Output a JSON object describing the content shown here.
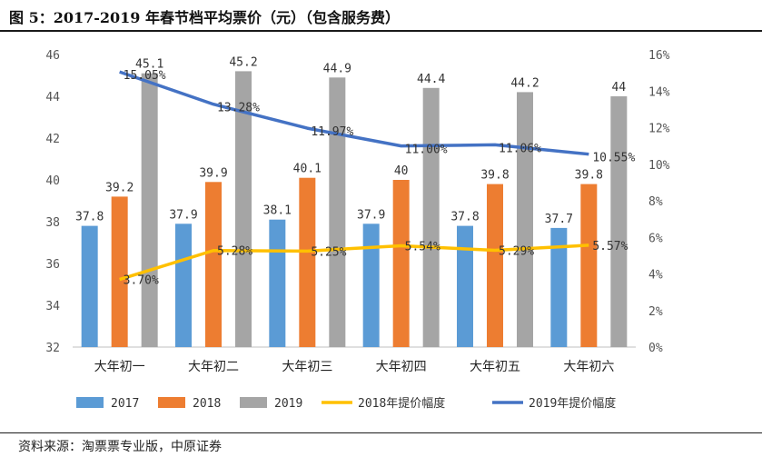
{
  "title": "图 5：2017-2019 年春节档平均票价（元）（包含服务费）",
  "source": "资料来源：淘票票专业版，中原证券",
  "chart_data": {
    "type": "bar+line",
    "categories": [
      "大年初一",
      "大年初二",
      "大年初三",
      "大年初四",
      "大年初五",
      "大年初六"
    ],
    "series": [
      {
        "name": "2017",
        "kind": "bar",
        "axis": "left",
        "color": "#5b9bd5",
        "values": [
          37.8,
          37.9,
          38.1,
          37.9,
          37.8,
          37.7
        ],
        "labels": [
          "37.8",
          "37.9",
          "38.1",
          "37.9",
          "37.8",
          "37.7"
        ]
      },
      {
        "name": "2018",
        "kind": "bar",
        "axis": "left",
        "color": "#ed7d31",
        "values": [
          39.2,
          39.9,
          40.1,
          40.0,
          39.8,
          39.8
        ],
        "labels": [
          "39.2",
          "39.9",
          "40.1",
          "40",
          "39.8",
          "39.8"
        ]
      },
      {
        "name": "2019",
        "kind": "bar",
        "axis": "left",
        "color": "#a5a5a5",
        "values": [
          45.1,
          45.2,
          44.9,
          44.4,
          44.2,
          44.0
        ],
        "labels": [
          "45.1",
          "45.2",
          "44.9",
          "44.4",
          "44.2",
          "44"
        ]
      },
      {
        "name": "2018年提价幅度",
        "kind": "line",
        "axis": "right",
        "color": "#ffc000",
        "values": [
          3.7,
          5.28,
          5.25,
          5.54,
          5.29,
          5.57
        ],
        "labels": [
          "3.70%",
          "5.28%",
          "5.25%",
          "5.54%",
          "5.29%",
          "5.57%"
        ]
      },
      {
        "name": "2019年提价幅度",
        "kind": "line",
        "axis": "right",
        "color": "#4472c4",
        "values": [
          15.05,
          13.28,
          11.97,
          11.0,
          11.06,
          10.55
        ],
        "labels": [
          "15.05%",
          "13.28%",
          "11.97%",
          "11.00%",
          "11.06%",
          "10.55%"
        ]
      }
    ],
    "y_left": {
      "min": 32,
      "max": 46,
      "ticks": [
        "32",
        "34",
        "36",
        "38",
        "40",
        "42",
        "44",
        "46"
      ]
    },
    "y_right": {
      "min": 0,
      "max": 16,
      "ticks": [
        "0%",
        "2%",
        "4%",
        "6%",
        "8%",
        "10%",
        "12%",
        "14%",
        "16%"
      ]
    },
    "legend_position": "bottom",
    "grid": false
  }
}
